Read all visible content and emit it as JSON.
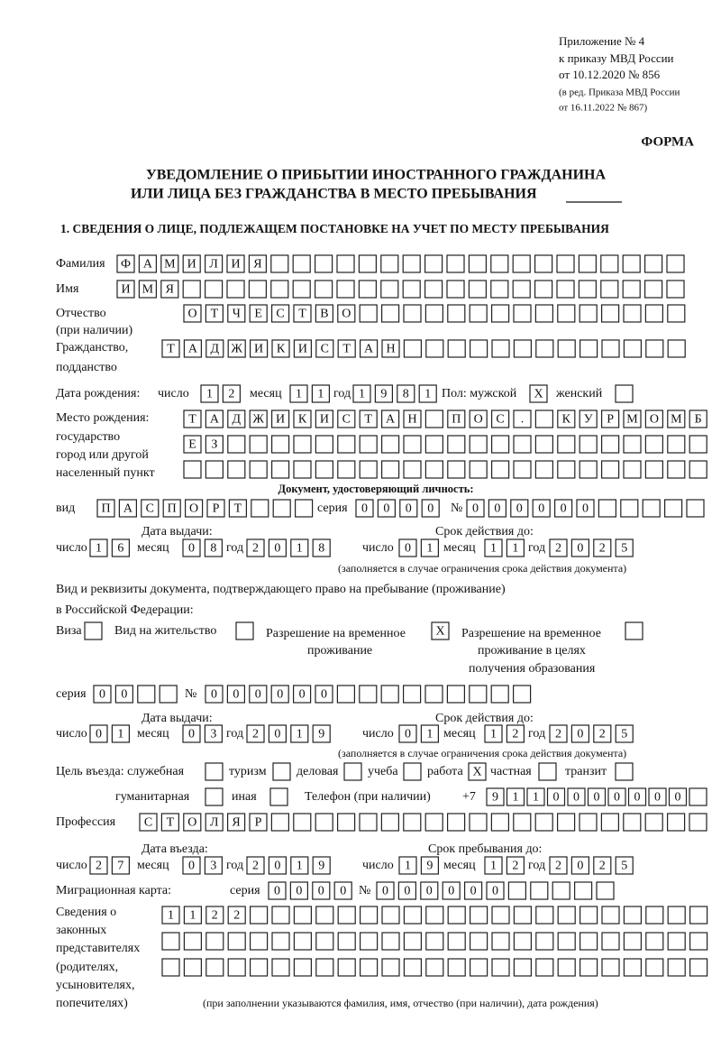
{
  "labels": {
    "h1": "Приложение № 4",
    "h2": "к приказу МВД России",
    "h3": "от 10.12.2020 № 856",
    "h4": "(в ред. Приказа МВД России",
    "h5": "от 16.11.2022 № 867)",
    "form": "ФОРМА",
    "t1": "УВЕДОМЛЕНИЕ О ПРИБЫТИИ ИНОСТРАННОГО ГРАЖДАНИНА",
    "t2": "ИЛИ ЛИЦА БЕЗ ГРАЖДАНСТВА В МЕСТО ПРЕБЫВАНИЯ",
    "sec": "1. СВЕДЕНИЯ О ЛИЦЕ, ПОДЛЕЖАЩЕМ ПОСТАНОВКЕ НА УЧЕТ ПО МЕСТУ ПРЕБЫВАНИЯ",
    "surname": "Фамилия",
    "name": "Имя",
    "patr": "Отчество",
    "patr2": "(при наличии)",
    "cit": "Гражданство,",
    "cit2": "подданство",
    "dob": "Дата рождения:",
    "sex": "Пол: мужской",
    "female": "женский",
    "pob1": "Место рождения:",
    "pob2": "государство",
    "pob3": "город или другой",
    "pob4": "населенный пункт",
    "iddoc": "Документ, удостоверяющий личность:",
    "kind": "вид",
    "series": "серия",
    "num": "№",
    "issued": "Дата выдачи:",
    "valid": "Срок действия до:",
    "note1": "(заполняется в случае ограничения срока действия документа)",
    "right1": "Вид и реквизиты документа, подтверждающего право на пребывание (проживание)",
    "right2": "в Российской Федерации:",
    "visa": "Виза",
    "residence": "Вид на жительство",
    "trp1": "Разрешение на временное",
    "trp2": "проживание",
    "trpe1": "Разрешение на временное",
    "trpe2": "проживание в целях",
    "trpe3": "получения образования",
    "series2": "серия",
    "num2": "№",
    "issued2": "Дата выдачи:",
    "valid2": "Срок действия до:",
    "note2": "(заполняется в случае ограничения срока действия документа)",
    "purpose": "Цель въезда: служебная",
    "tourism": "туризм",
    "business": "деловая",
    "study": "учеба",
    "work": "работа",
    "private": "частная",
    "transit": "транзит",
    "humanitarian": "гуманитарная",
    "other": "иная",
    "phone": "Телефон (при наличии)",
    "phone_prefix": "+7",
    "profession": "Профессия",
    "entry": "Дата въезда:",
    "stay": "Срок пребывания до:",
    "migration": "Миграционная карта:",
    "series3": "серия",
    "num3": "№",
    "rep1": "Сведения о",
    "rep2": "законных",
    "rep3": "представителях",
    "rep4": "(родителях,",
    "rep5": "усыновителях,",
    "rep6": "попечителях)",
    "rep_note": "(при заполнении указываются фамилия, имя, отчество (при наличии), дата рождения)"
  },
  "cells": {
    "surname": [
      "Ф",
      "А",
      "М",
      "И",
      "Л",
      "И",
      "Я"
    ],
    "first_name": [
      "И",
      "М",
      "Я"
    ],
    "patronymic": [
      "О",
      "Т",
      "Ч",
      "Е",
      "С",
      "Т",
      "В",
      "О"
    ],
    "citizenship": [
      "Т",
      "А",
      "Д",
      "Ж",
      "И",
      "К",
      "И",
      "С",
      "Т",
      "А",
      "Н"
    ],
    "sex_male": [
      "X"
    ],
    "pob_country": [
      "Т",
      "А",
      "Д",
      "Ж",
      "И",
      "К",
      "И",
      "С",
      "Т",
      "А",
      "Н"
    ],
    "pob_type": [
      "П",
      "О",
      "С",
      "."
    ],
    "pob_place": [
      "К",
      "У",
      "Р",
      "М",
      "О",
      "М",
      "Б"
    ],
    "pob_place2": [
      "Е",
      "З"
    ],
    "doc_kind": [
      "П",
      "А",
      "С",
      "П",
      "О",
      "Р",
      "Т"
    ],
    "doc_series": [
      "0",
      "0",
      "0",
      "0"
    ],
    "doc_number": [
      "0",
      "0",
      "0",
      "0",
      "0",
      "0"
    ],
    "trp": [
      "X"
    ],
    "permit_series": [
      "0",
      "0"
    ],
    "permit_number": [
      "0",
      "0",
      "0",
      "0",
      "0",
      "0"
    ],
    "purpose_work": [
      "X"
    ],
    "phone": [
      "9",
      "1",
      "1",
      "0",
      "0",
      "0",
      "0",
      "0",
      "0",
      "0"
    ],
    "profession": [
      "С",
      "Т",
      "О",
      "Л",
      "Я",
      "Р"
    ],
    "mig_series": [
      "0",
      "0",
      "0",
      "0"
    ],
    "mig_number": [
      "0",
      "0",
      "0",
      "0",
      "0",
      "0"
    ],
    "representatives": [
      "1",
      "1",
      "2",
      "2"
    ]
  },
  "dates": {
    "birth": {
      "day_label": "число",
      "day": [
        "1",
        "2"
      ],
      "month_label": "месяц",
      "month": [
        "1",
        "1"
      ],
      "year_label": "год",
      "year": [
        "1",
        "9",
        "8",
        "1"
      ]
    },
    "doc_issue": {
      "day_label": "число",
      "day": [
        "1",
        "6"
      ],
      "month_label": "месяц",
      "month": [
        "0",
        "8"
      ],
      "year_label": "год",
      "year": [
        "2",
        "0",
        "1",
        "8"
      ]
    },
    "doc_valid": {
      "day_label": "число",
      "day": [
        "0",
        "1"
      ],
      "month_label": "месяц",
      "month": [
        "1",
        "1"
      ],
      "year_label": "год",
      "year": [
        "2",
        "0",
        "2",
        "5"
      ]
    },
    "permit_issue": {
      "day_label": "число",
      "day": [
        "0",
        "1"
      ],
      "month_label": "месяц",
      "month": [
        "0",
        "3"
      ],
      "year_label": "год",
      "year": [
        "2",
        "0",
        "1",
        "9"
      ]
    },
    "permit_valid": {
      "day_label": "число",
      "day": [
        "0",
        "1"
      ],
      "month_label": "месяц",
      "month": [
        "1",
        "2"
      ],
      "year_label": "год",
      "year": [
        "2",
        "0",
        "2",
        "5"
      ]
    },
    "entry": {
      "day_label": "число",
      "day": [
        "2",
        "7"
      ],
      "month_label": "месяц",
      "month": [
        "0",
        "3"
      ],
      "year_label": "год",
      "year": [
        "2",
        "0",
        "1",
        "9"
      ]
    },
    "stay": {
      "day_label": "число",
      "day": [
        "1",
        "9"
      ],
      "month_label": "месяц",
      "month": [
        "1",
        "2"
      ],
      "year_label": "год",
      "year": [
        "2",
        "0",
        "2",
        "5"
      ]
    }
  }
}
